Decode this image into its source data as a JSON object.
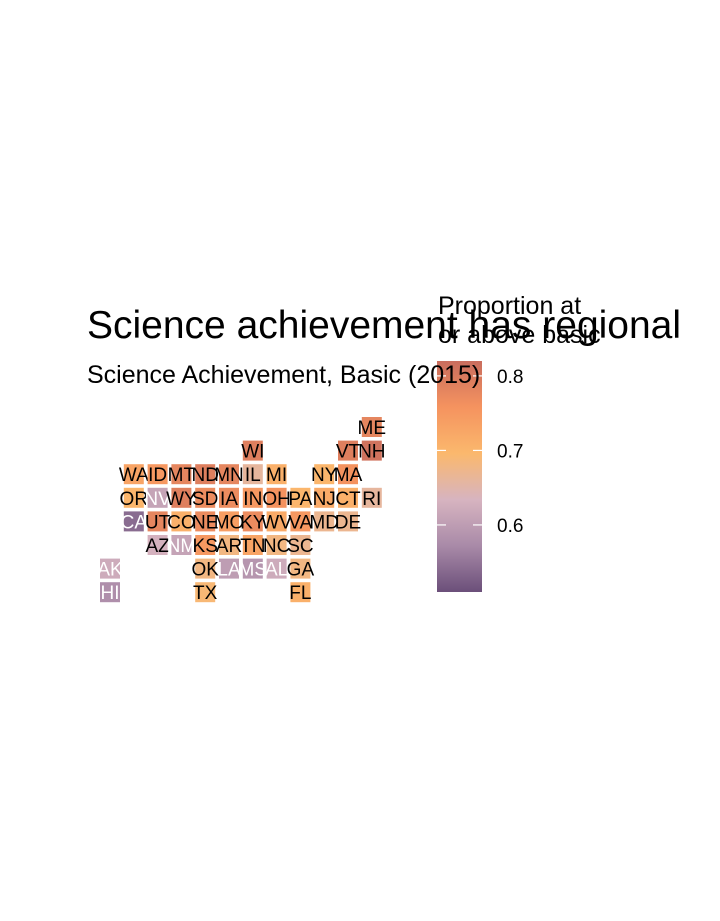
{
  "chart_data": {
    "type": "heatmap",
    "subtype": "us-state-tile-grid-map",
    "title": "Science achievement has regional",
    "subtitle": "Science Achievement, Basic (2015)",
    "legend": {
      "title_line1": "Proportion at",
      "title_line2": "or above basic",
      "ticks": [
        0.6,
        0.7,
        0.8
      ],
      "tick_labels": [
        "0.6",
        "0.7",
        "0.8"
      ],
      "range": [
        0.51,
        0.82
      ],
      "placement": "right"
    },
    "color_scale": [
      "#6b4f7a",
      "#a98aa8",
      "#d7b4c0",
      "#fbb86d",
      "#f5935f",
      "#c96d5e"
    ],
    "states": [
      {
        "abbr": "ME",
        "col": 11,
        "row": 0,
        "value": 0.78
      },
      {
        "abbr": "WI",
        "col": 6,
        "row": 1,
        "value": 0.79
      },
      {
        "abbr": "VT",
        "col": 10,
        "row": 1,
        "value": 0.79
      },
      {
        "abbr": "NH",
        "col": 11,
        "row": 1,
        "value": 0.81
      },
      {
        "abbr": "WA",
        "col": 1,
        "row": 2,
        "value": 0.73
      },
      {
        "abbr": "ID",
        "col": 2,
        "row": 2,
        "value": 0.75
      },
      {
        "abbr": "MT",
        "col": 3,
        "row": 2,
        "value": 0.78
      },
      {
        "abbr": "ND",
        "col": 4,
        "row": 2,
        "value": 0.79
      },
      {
        "abbr": "MN",
        "col": 5,
        "row": 2,
        "value": 0.78
      },
      {
        "abbr": "IL",
        "col": 6,
        "row": 2,
        "value": 0.66
      },
      {
        "abbr": "MI",
        "col": 7,
        "row": 2,
        "value": 0.71
      },
      {
        "abbr": "NY",
        "col": 9,
        "row": 2,
        "value": 0.7
      },
      {
        "abbr": "MA",
        "col": 10,
        "row": 2,
        "value": 0.76
      },
      {
        "abbr": "OR",
        "col": 1,
        "row": 3,
        "value": 0.7
      },
      {
        "abbr": "NV",
        "col": 2,
        "row": 3,
        "value": 0.61
      },
      {
        "abbr": "WY",
        "col": 3,
        "row": 3,
        "value": 0.79
      },
      {
        "abbr": "SD",
        "col": 4,
        "row": 3,
        "value": 0.77
      },
      {
        "abbr": "IA",
        "col": 5,
        "row": 3,
        "value": 0.77
      },
      {
        "abbr": "IN",
        "col": 6,
        "row": 3,
        "value": 0.75
      },
      {
        "abbr": "OH",
        "col": 7,
        "row": 3,
        "value": 0.76
      },
      {
        "abbr": "PA",
        "col": 8,
        "row": 3,
        "value": 0.7
      },
      {
        "abbr": "NJ",
        "col": 9,
        "row": 3,
        "value": 0.72
      },
      {
        "abbr": "CT",
        "col": 10,
        "row": 3,
        "value": 0.71
      },
      {
        "abbr": "RI",
        "col": 11,
        "row": 3,
        "value": 0.66
      },
      {
        "abbr": "CA",
        "col": 1,
        "row": 4,
        "value": 0.54
      },
      {
        "abbr": "UT",
        "col": 2,
        "row": 4,
        "value": 0.78
      },
      {
        "abbr": "CO",
        "col": 3,
        "row": 4,
        "value": 0.71
      },
      {
        "abbr": "NE",
        "col": 4,
        "row": 4,
        "value": 0.77
      },
      {
        "abbr": "MO",
        "col": 5,
        "row": 4,
        "value": 0.74
      },
      {
        "abbr": "KY",
        "col": 6,
        "row": 4,
        "value": 0.77
      },
      {
        "abbr": "WV",
        "col": 7,
        "row": 4,
        "value": 0.72
      },
      {
        "abbr": "VA",
        "col": 8,
        "row": 4,
        "value": 0.75
      },
      {
        "abbr": "MD",
        "col": 9,
        "row": 4,
        "value": 0.67
      },
      {
        "abbr": "DE",
        "col": 10,
        "row": 4,
        "value": 0.67
      },
      {
        "abbr": "AZ",
        "col": 2,
        "row": 5,
        "value": 0.63
      },
      {
        "abbr": "NM",
        "col": 3,
        "row": 5,
        "value": 0.61
      },
      {
        "abbr": "KS",
        "col": 4,
        "row": 5,
        "value": 0.75
      },
      {
        "abbr": "AR",
        "col": 5,
        "row": 5,
        "value": 0.68
      },
      {
        "abbr": "TN",
        "col": 6,
        "row": 5,
        "value": 0.73
      },
      {
        "abbr": "NC",
        "col": 7,
        "row": 5,
        "value": 0.68
      },
      {
        "abbr": "SC",
        "col": 8,
        "row": 5,
        "value": 0.67
      },
      {
        "abbr": "AK",
        "col": 0,
        "row": 6,
        "value": 0.62
      },
      {
        "abbr": "OK",
        "col": 4,
        "row": 6,
        "value": 0.68
      },
      {
        "abbr": "LA",
        "col": 5,
        "row": 6,
        "value": 0.6
      },
      {
        "abbr": "MS",
        "col": 6,
        "row": 6,
        "value": 0.59
      },
      {
        "abbr": "AL",
        "col": 7,
        "row": 6,
        "value": 0.62
      },
      {
        "abbr": "GA",
        "col": 8,
        "row": 6,
        "value": 0.68
      },
      {
        "abbr": "HI",
        "col": 0,
        "row": 7,
        "value": 0.58
      },
      {
        "abbr": "TX",
        "col": 4,
        "row": 7,
        "value": 0.69
      },
      {
        "abbr": "FL",
        "col": 8,
        "row": 7,
        "value": 0.71
      }
    ]
  }
}
